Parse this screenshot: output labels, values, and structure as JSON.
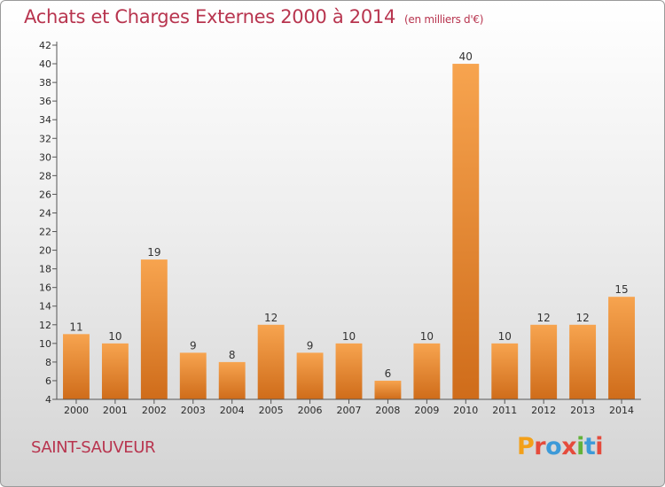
{
  "header": {
    "title": "Achats et Charges Externes 2000 à 2014",
    "unit": "(en milliers d'€)"
  },
  "footer": {
    "town": "SAINT-SAUVEUR",
    "logo_text": "Proxiti"
  },
  "colors": {
    "title": "#b8354f",
    "bar_light": "#f7a44f",
    "bar_dark": "#cf6c1a",
    "logo_letters": [
      "#f3a019",
      "#e54b3c",
      "#3d9ad8",
      "#e54b3c",
      "#62b23a",
      "#3d9ad8",
      "#e54b3c"
    ]
  },
  "chart_data": {
    "type": "bar",
    "title": "Achats et Charges Externes 2000 à 2014",
    "subtitle": "(en milliers d'€)",
    "categories": [
      "2000",
      "2001",
      "2002",
      "2003",
      "2004",
      "2005",
      "2006",
      "2007",
      "2008",
      "2009",
      "2010",
      "2011",
      "2012",
      "2013",
      "2014"
    ],
    "values": [
      11,
      10,
      19,
      9,
      8,
      12,
      9,
      10,
      6,
      10,
      40,
      10,
      12,
      12,
      15
    ],
    "data_labels": [
      "11",
      "10",
      "19",
      "9",
      "8",
      "12",
      "9",
      "10",
      "6",
      "10",
      "40",
      "10",
      "12",
      "12",
      "15"
    ],
    "ylim": [
      4,
      42
    ],
    "yticks": [
      "4",
      "6",
      "8",
      "10",
      "12",
      "14",
      "16",
      "18",
      "20",
      "22",
      "24",
      "26",
      "28",
      "30",
      "32",
      "34",
      "36",
      "38",
      "40",
      "42"
    ],
    "grid": false,
    "xlabel": "",
    "ylabel": ""
  }
}
